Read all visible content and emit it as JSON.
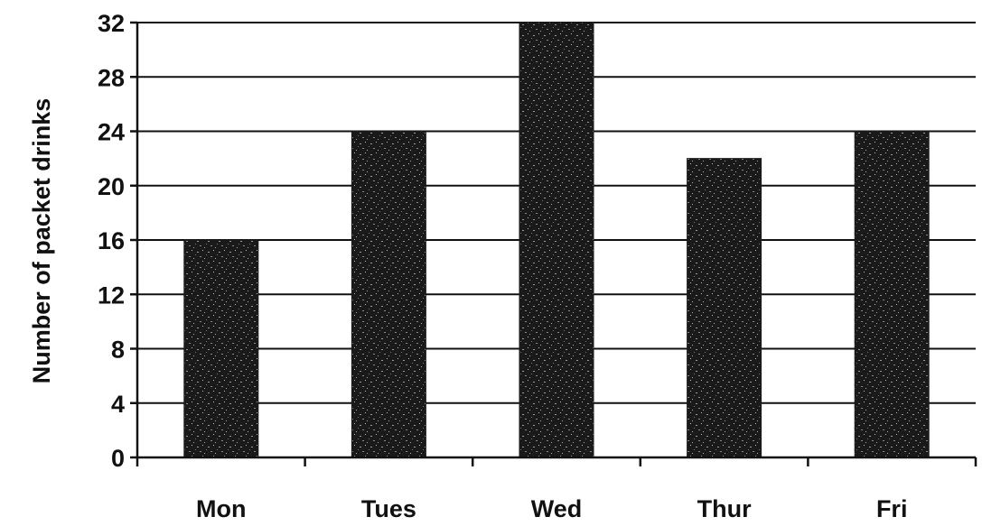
{
  "chart_data": {
    "type": "bar",
    "title": "",
    "xlabel": "",
    "ylabel": "Number of packet drinks",
    "categories": [
      "Mon",
      "Tues",
      "Wed",
      "Thur",
      "Fri"
    ],
    "values": [
      16,
      24,
      32,
      22,
      24
    ],
    "ylim": [
      0,
      32
    ],
    "yticks": [
      0,
      4,
      8,
      12,
      16,
      20,
      24,
      28,
      32
    ],
    "grid": true,
    "legend": "none",
    "bar_color": "#1a1a1a"
  }
}
